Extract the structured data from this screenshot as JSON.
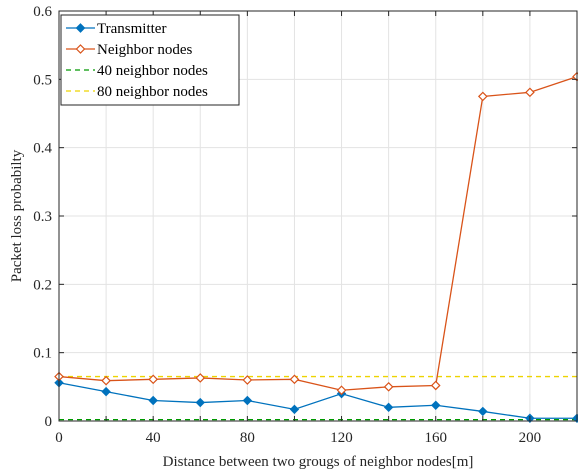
{
  "chart_data": {
    "type": "line",
    "title": "",
    "xlabel": "Distance between two grougs of neighbor nodes[m]",
    "ylabel": "Packet loss probabilty",
    "xlim": [
      0,
      220
    ],
    "ylim": [
      0,
      0.6
    ],
    "xticks": [
      0,
      40,
      80,
      120,
      160,
      200
    ],
    "yticks": [
      0,
      0.1,
      0.2,
      0.3,
      0.4,
      0.5,
      0.6
    ],
    "xtick_labels": [
      "0",
      "40",
      "80",
      "120",
      "160",
      "200"
    ],
    "ytick_labels": [
      "0",
      "0.1",
      "0.2",
      "0.3",
      "0.4",
      "0.5",
      "0.6"
    ],
    "grid": true,
    "legend_position": "top-left",
    "x": [
      0,
      20,
      40,
      60,
      80,
      100,
      120,
      140,
      160,
      180,
      200,
      220
    ],
    "series": [
      {
        "name": "Transmitter",
        "color": "#0072BD",
        "style": "solid",
        "marker": "diamond",
        "values": [
          0.056,
          0.043,
          0.03,
          0.027,
          0.03,
          0.017,
          0.04,
          0.02,
          0.023,
          0.014,
          0.004,
          0.004
        ]
      },
      {
        "name": "Neighbor nodes",
        "color": "#D95319",
        "style": "solid",
        "marker": "diamond-open",
        "values": [
          0.065,
          0.059,
          0.061,
          0.063,
          0.06,
          0.061,
          0.045,
          0.05,
          0.052,
          0.475,
          0.481,
          0.504
        ]
      },
      {
        "name": "40 neighbor nodes",
        "color": "#009900",
        "style": "dashed",
        "marker": "none",
        "values": [
          0.002,
          0.002,
          0.002,
          0.002,
          0.002,
          0.002,
          0.002,
          0.002,
          0.002,
          0.002,
          0.002,
          0.002
        ]
      },
      {
        "name": "80 neighbor nodes",
        "color": "#EDD400",
        "style": "dashed",
        "marker": "none",
        "values": [
          0.065,
          0.065,
          0.065,
          0.065,
          0.065,
          0.065,
          0.065,
          0.065,
          0.065,
          0.065,
          0.065,
          0.065
        ]
      }
    ]
  }
}
